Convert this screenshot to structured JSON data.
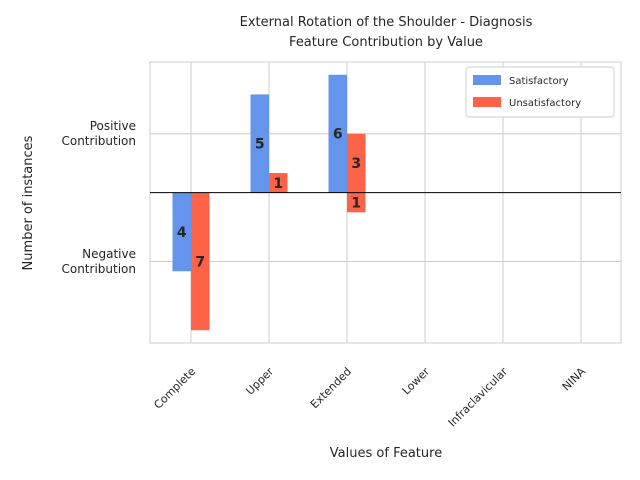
{
  "chart_data": {
    "type": "diverging-bar",
    "title_lines": [
      "External Rotation of the Shoulder - Diagnosis",
      "Feature Contribution by Value"
    ],
    "x_label": "Values of Feature",
    "y_label": "Number of instances",
    "categories": [
      "Complete",
      "Upper",
      "Extended",
      "Lower",
      "Infraclavicular",
      "NINA"
    ],
    "series": [
      {
        "name": "Satisfactory",
        "color": "#6495ed",
        "values": [
          null,
          5,
          6,
          null,
          null,
          null
        ],
        "negative_values": [
          -4,
          null,
          null,
          null,
          null,
          null
        ],
        "negative_value_labels": [
          "4",
          null,
          null,
          null,
          null,
          null
        ]
      },
      {
        "name": "Unsatisfactory",
        "color": "#ff6347",
        "values": [
          null,
          1,
          3,
          null,
          null,
          null
        ],
        "negative_values": [
          -7,
          null,
          -1,
          null,
          null,
          null
        ],
        "negative_value_labels": [
          "7",
          null,
          "1",
          null,
          null,
          null
        ]
      }
    ],
    "ylim": [
      -7.65,
      6.65
    ],
    "yticks": [
      {
        "value": 3,
        "label": "Positive\nContribution"
      },
      {
        "value": -3.5,
        "label": "Negative\nContribution"
      }
    ],
    "grid": true,
    "legend": "upper right"
  }
}
